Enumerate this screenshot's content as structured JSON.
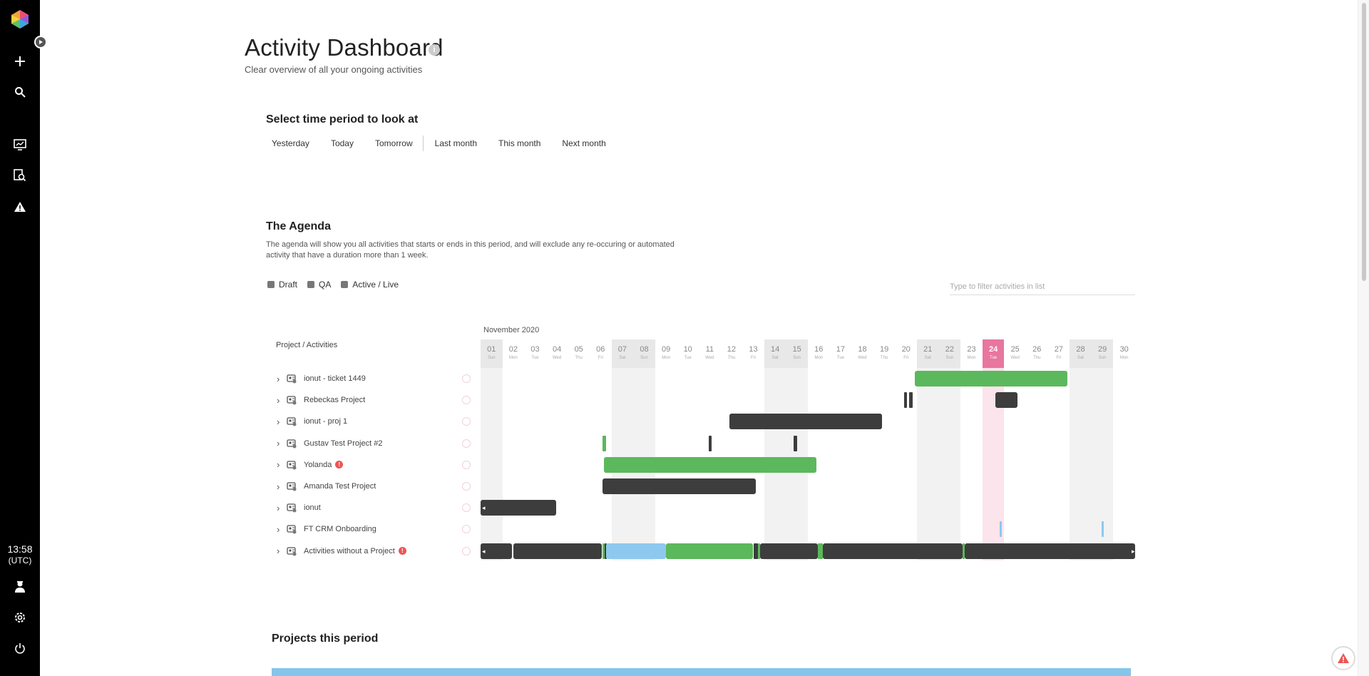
{
  "sidebar": {
    "items": [
      {
        "name": "add-icon"
      },
      {
        "name": "search-icon"
      },
      {
        "name": "dashboard-chart-icon"
      },
      {
        "name": "report-search-icon"
      },
      {
        "name": "warning-icon"
      }
    ],
    "clock": {
      "time": "13:58",
      "tz": "(UTC)"
    },
    "bottom": [
      {
        "name": "user-icon"
      },
      {
        "name": "gear-icon"
      },
      {
        "name": "power-icon"
      }
    ]
  },
  "header": {
    "title": "Activity Dashboard",
    "info": "i",
    "subtitle": "Clear overview of all your ongoing activities"
  },
  "period": {
    "heading": "Select time period to look at",
    "options": [
      "Yesterday",
      "Today",
      "Tomorrow",
      "Last month",
      "This month",
      "Next month"
    ]
  },
  "agenda": {
    "heading": "The Agenda",
    "description": "The agenda will show you all activities that starts or ends in this period, and will exclude any re-occuring or automated activity that have a duration more than 1 week.",
    "legend": [
      {
        "label": "Draft",
        "color": "#777777"
      },
      {
        "label": "QA",
        "color": "#777777"
      },
      {
        "label": "Active / Live",
        "color": "#777777"
      }
    ],
    "filter_placeholder": "Type to filter activities in list",
    "month": "November 2020",
    "column_header": "Project / Activities",
    "days": [
      {
        "n": "01",
        "w": "Sun",
        "weekend": true
      },
      {
        "n": "02",
        "w": "Mon"
      },
      {
        "n": "03",
        "w": "Tue"
      },
      {
        "n": "04",
        "w": "Wed"
      },
      {
        "n": "05",
        "w": "Thu"
      },
      {
        "n": "06",
        "w": "Fri"
      },
      {
        "n": "07",
        "w": "Sat",
        "weekend": true
      },
      {
        "n": "08",
        "w": "Sun",
        "weekend": true
      },
      {
        "n": "09",
        "w": "Mon"
      },
      {
        "n": "10",
        "w": "Tue"
      },
      {
        "n": "11",
        "w": "Wed"
      },
      {
        "n": "12",
        "w": "Thu"
      },
      {
        "n": "13",
        "w": "Fri"
      },
      {
        "n": "14",
        "w": "Sat",
        "weekend": true
      },
      {
        "n": "15",
        "w": "Sun",
        "weekend": true
      },
      {
        "n": "16",
        "w": "Mon"
      },
      {
        "n": "17",
        "w": "Tue"
      },
      {
        "n": "18",
        "w": "Wed"
      },
      {
        "n": "19",
        "w": "Thu"
      },
      {
        "n": "20",
        "w": "Fri"
      },
      {
        "n": "21",
        "w": "Sat",
        "weekend": true
      },
      {
        "n": "22",
        "w": "Sun",
        "weekend": true
      },
      {
        "n": "23",
        "w": "Mon"
      },
      {
        "n": "24",
        "w": "Tue",
        "today": true
      },
      {
        "n": "25",
        "w": "Wed"
      },
      {
        "n": "26",
        "w": "Thu"
      },
      {
        "n": "27",
        "w": "Fri"
      },
      {
        "n": "28",
        "w": "Sat",
        "weekend": true
      },
      {
        "n": "29",
        "w": "Sun",
        "weekend": true
      },
      {
        "n": "30",
        "w": "Mon"
      }
    ],
    "colors": {
      "active": "#5cb85c",
      "draft": "#3d3d3d",
      "qa": "#8ec8ee"
    },
    "projects": [
      {
        "name": "ionut - ticket 1449",
        "bars": [
          {
            "start": 20.9,
            "end": 27.9,
            "status": "active"
          }
        ]
      },
      {
        "name": "Rebeckas Project",
        "bars": [
          {
            "start": 20.4,
            "end": 20.55,
            "status": "draft"
          },
          {
            "start": 20.65,
            "end": 20.8,
            "status": "draft"
          },
          {
            "start": 24.6,
            "end": 25.6,
            "status": "draft"
          }
        ]
      },
      {
        "name": "ionut - proj 1",
        "bars": [
          {
            "start": 12.4,
            "end": 19.4,
            "status": "draft"
          }
        ]
      },
      {
        "name": "Gustav Test Project #2",
        "bars": [
          {
            "start": 6.6,
            "end": 6.75,
            "status": "active"
          },
          {
            "start": 11.45,
            "end": 11.6,
            "status": "draft"
          },
          {
            "start": 15.35,
            "end": 15.5,
            "status": "draft"
          }
        ]
      },
      {
        "name": "Yolanda",
        "warning": true,
        "bars": [
          {
            "start": 6.65,
            "end": 16.4,
            "status": "active"
          }
        ]
      },
      {
        "name": "Amanda Test Project",
        "bars": [
          {
            "start": 6.6,
            "end": 13.6,
            "status": "draft"
          }
        ]
      },
      {
        "name": "ionut",
        "bars": [
          {
            "start": 1,
            "end": 4.45,
            "status": "draft"
          }
        ]
      },
      {
        "name": "FT CRM Onboarding",
        "bars": [
          {
            "start": 24.8,
            "end": 24.9,
            "status": "qa"
          },
          {
            "start": 29.45,
            "end": 29.55,
            "status": "qa"
          }
        ]
      },
      {
        "name": "Activities without a Project",
        "warning": true,
        "bars": [
          {
            "start": 1,
            "end": 2.45,
            "status": "draft"
          },
          {
            "start": 2.5,
            "end": 6.55,
            "status": "draft"
          },
          {
            "start": 6.6,
            "end": 6.7,
            "status": "active"
          },
          {
            "start": 6.7,
            "end": 6.75,
            "status": "draft"
          },
          {
            "start": 6.75,
            "end": 9.5,
            "status": "qa"
          },
          {
            "start": 9.5,
            "end": 13.5,
            "status": "active"
          },
          {
            "start": 13.5,
            "end": 13.7,
            "status": "draft"
          },
          {
            "start": 13.7,
            "end": 13.8,
            "status": "active"
          },
          {
            "start": 13.8,
            "end": 16.45,
            "status": "draft"
          },
          {
            "start": 16.45,
            "end": 16.7,
            "status": "active"
          },
          {
            "start": 16.7,
            "end": 23.1,
            "status": "draft"
          },
          {
            "start": 23.1,
            "end": 23.2,
            "status": "active"
          },
          {
            "start": 23.2,
            "end": 31,
            "status": "draft"
          }
        ]
      }
    ]
  },
  "projects_period": {
    "heading": "Projects this period",
    "strip_color": "#86c5ea"
  }
}
